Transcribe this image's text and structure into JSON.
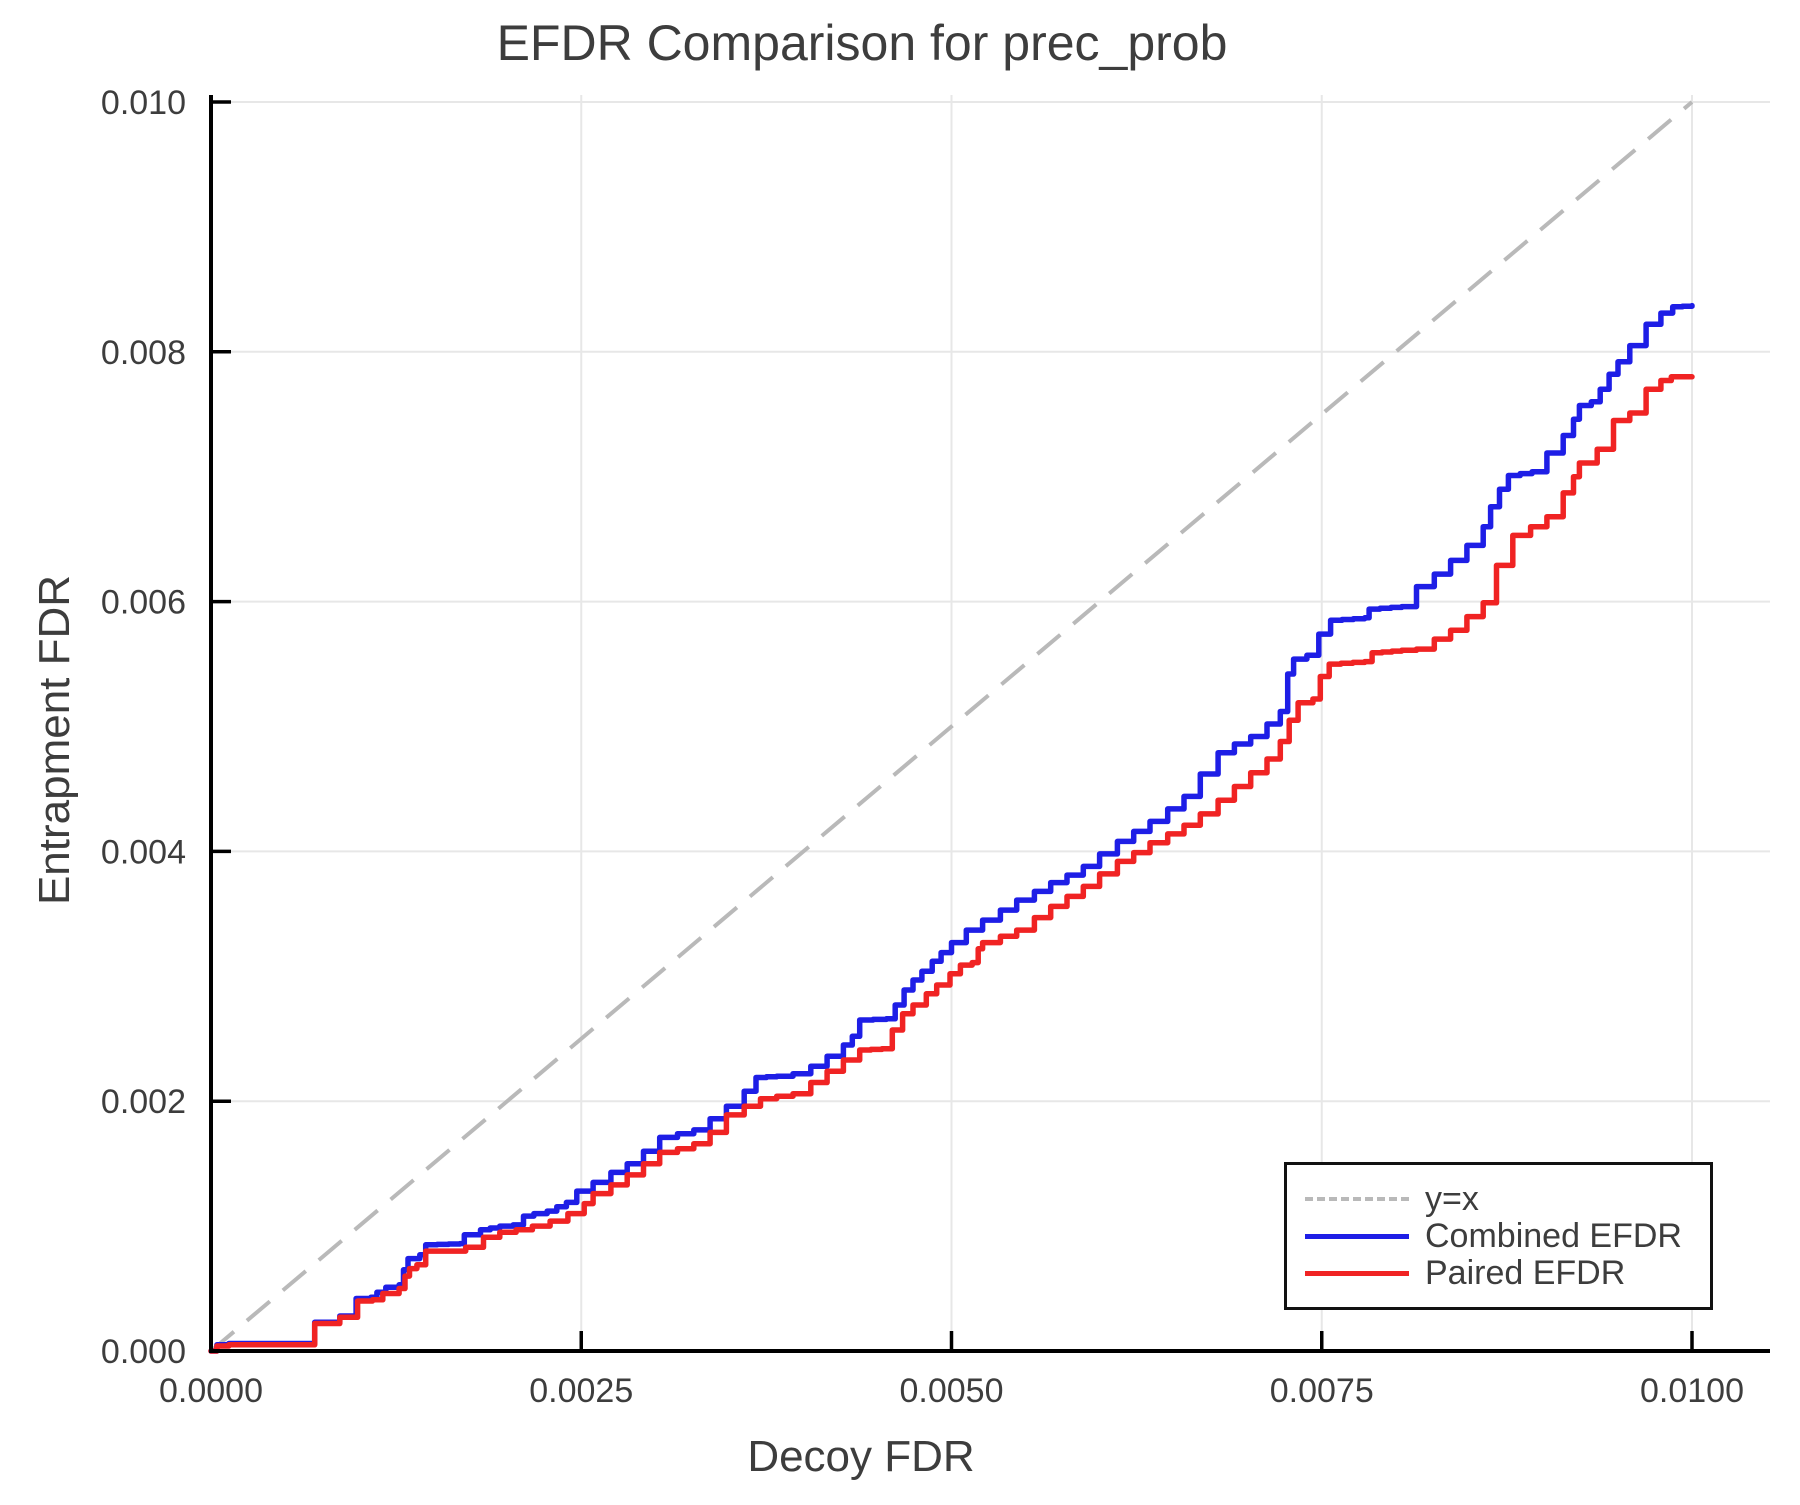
{
  "chart_data": {
    "type": "line",
    "title": "EFDR Comparison for prec_prob",
    "xlabel": "Decoy FDR",
    "ylabel": "Entrapment FDR",
    "xlim": [
      0,
      0.0105
    ],
    "ylim": [
      0,
      0.01005
    ],
    "grid": true,
    "background": "#ffffff",
    "grid_color": "#e7e7e7",
    "axis_color": "#000000",
    "text_color": "#3d3d3d",
    "x_ticks": {
      "values": [
        0,
        0.0025,
        0.005,
        0.0075,
        0.01
      ],
      "labels": [
        "0.0000",
        "0.0025",
        "0.0050",
        "0.0075",
        "0.0100"
      ]
    },
    "y_ticks": {
      "values": [
        0,
        0.002,
        0.004,
        0.006,
        0.008,
        0.01
      ],
      "labels": [
        "0.000",
        "0.002",
        "0.004",
        "0.006",
        "0.008",
        "0.010"
      ]
    },
    "legend": {
      "position": "lower right"
    },
    "series": [
      {
        "name": "y=x",
        "color": "#b9b9b9",
        "style": "dashed",
        "role": "reference",
        "points": [
          [
            0,
            0
          ],
          [
            0.01,
            0.01
          ]
        ]
      },
      {
        "name": "Combined EFDR",
        "color": "#1e1ee6",
        "style": "solid",
        "role": "data",
        "points": [
          [
            0,
            0
          ],
          [
            4e-05,
            5e-05
          ],
          [
            0.00012,
            6e-05
          ],
          [
            0.00068,
            6e-05
          ],
          [
            0.0007,
            0.00023
          ],
          [
            0.00085,
            0.00023
          ],
          [
            0.00087,
            0.00028
          ],
          [
            0.00096,
            0.00028
          ],
          [
            0.00098,
            0.00042
          ],
          [
            0.00108,
            0.00043
          ],
          [
            0.00112,
            0.00047
          ],
          [
            0.00118,
            0.00051
          ],
          [
            0.00127,
            0.00053
          ],
          [
            0.0013,
            0.00065
          ],
          [
            0.00133,
            0.00074
          ],
          [
            0.00141,
            0.00077
          ],
          [
            0.00145,
            0.00085
          ],
          [
            0.00168,
            0.00086
          ],
          [
            0.00171,
            0.00093
          ],
          [
            0.00182,
            0.00097
          ],
          [
            0.00195,
            0.001
          ],
          [
            0.00204,
            0.00101
          ],
          [
            0.00211,
            0.00108
          ],
          [
            0.00218,
            0.0011
          ],
          [
            0.00227,
            0.00112
          ],
          [
            0.0024,
            0.00119
          ],
          [
            0.00247,
            0.00128
          ],
          [
            0.00258,
            0.00135
          ],
          [
            0.0027,
            0.00143
          ],
          [
            0.00281,
            0.0015
          ],
          [
            0.00292,
            0.0016
          ],
          [
            0.00303,
            0.00171
          ],
          [
            0.00315,
            0.00174
          ],
          [
            0.00326,
            0.00177
          ],
          [
            0.00337,
            0.00186
          ],
          [
            0.00348,
            0.00196
          ],
          [
            0.0036,
            0.00208
          ],
          [
            0.00368,
            0.00219
          ],
          [
            0.00382,
            0.0022
          ],
          [
            0.00393,
            0.00222
          ],
          [
            0.00405,
            0.00228
          ],
          [
            0.00416,
            0.00236
          ],
          [
            0.00427,
            0.00245
          ],
          [
            0.00433,
            0.00252
          ],
          [
            0.00438,
            0.00265
          ],
          [
            0.00456,
            0.00266
          ],
          [
            0.00462,
            0.00277
          ],
          [
            0.00468,
            0.00289
          ],
          [
            0.00474,
            0.00297
          ],
          [
            0.0048,
            0.00304
          ],
          [
            0.00487,
            0.00312
          ],
          [
            0.00493,
            0.00319
          ],
          [
            0.005,
            0.00327
          ],
          [
            0.0051,
            0.00337
          ],
          [
            0.00521,
            0.00345
          ],
          [
            0.00533,
            0.00353
          ],
          [
            0.00544,
            0.00361
          ],
          [
            0.00556,
            0.00368
          ],
          [
            0.00567,
            0.00375
          ],
          [
            0.00578,
            0.00381
          ],
          [
            0.00589,
            0.00388
          ],
          [
            0.006,
            0.00398
          ],
          [
            0.00612,
            0.00408
          ],
          [
            0.00623,
            0.00416
          ],
          [
            0.00634,
            0.00424
          ],
          [
            0.00646,
            0.00434
          ],
          [
            0.00657,
            0.00444
          ],
          [
            0.00668,
            0.00462
          ],
          [
            0.0068,
            0.00479
          ],
          [
            0.00691,
            0.00486
          ],
          [
            0.00702,
            0.00492
          ],
          [
            0.00713,
            0.00502
          ],
          [
            0.00722,
            0.00512
          ],
          [
            0.00727,
            0.00542
          ],
          [
            0.00731,
            0.00554
          ],
          [
            0.0074,
            0.00557
          ],
          [
            0.00748,
            0.00574
          ],
          [
            0.00756,
            0.00585
          ],
          [
            0.00779,
            0.00587
          ],
          [
            0.00782,
            0.00594
          ],
          [
            0.00804,
            0.00596
          ],
          [
            0.00814,
            0.00612
          ],
          [
            0.00826,
            0.00622
          ],
          [
            0.00837,
            0.00633
          ],
          [
            0.00848,
            0.00645
          ],
          [
            0.00859,
            0.0066
          ],
          [
            0.00864,
            0.00676
          ],
          [
            0.0087,
            0.0069
          ],
          [
            0.00876,
            0.00701
          ],
          [
            0.00892,
            0.00704
          ],
          [
            0.00902,
            0.00719
          ],
          [
            0.00913,
            0.00733
          ],
          [
            0.0092,
            0.00746
          ],
          [
            0.00924,
            0.00757
          ],
          [
            0.00932,
            0.0076
          ],
          [
            0.00938,
            0.0077
          ],
          [
            0.00944,
            0.00782
          ],
          [
            0.0095,
            0.00792
          ],
          [
            0.00958,
            0.00805
          ],
          [
            0.00969,
            0.00822
          ],
          [
            0.00979,
            0.00831
          ],
          [
            0.00987,
            0.00836
          ],
          [
            0.01,
            0.00837
          ]
        ]
      },
      {
        "name": "Paired EFDR",
        "color": "#f02323",
        "style": "solid",
        "role": "data",
        "points": [
          [
            0,
            0
          ],
          [
            4e-05,
            4e-05
          ],
          [
            0.00012,
            5e-05
          ],
          [
            0.00068,
            5e-05
          ],
          [
            0.0007,
            0.00022
          ],
          [
            0.00085,
            0.00022
          ],
          [
            0.00087,
            0.00027
          ],
          [
            0.00097,
            0.00027
          ],
          [
            0.00099,
            0.0004
          ],
          [
            0.00109,
            0.00041
          ],
          [
            0.00116,
            0.00046
          ],
          [
            0.00127,
            0.0005
          ],
          [
            0.00131,
            0.0006
          ],
          [
            0.00134,
            0.00066
          ],
          [
            0.00139,
            0.00069
          ],
          [
            0.00145,
            0.0008
          ],
          [
            0.00165,
            0.0008
          ],
          [
            0.00172,
            0.00083
          ],
          [
            0.00184,
            0.00091
          ],
          [
            0.00195,
            0.00095
          ],
          [
            0.00206,
            0.00097
          ],
          [
            0.00217,
            0.001
          ],
          [
            0.00229,
            0.00104
          ],
          [
            0.00241,
            0.0011
          ],
          [
            0.00252,
            0.00118
          ],
          [
            0.00258,
            0.00126
          ],
          [
            0.0027,
            0.00133
          ],
          [
            0.00281,
            0.00141
          ],
          [
            0.00292,
            0.0015
          ],
          [
            0.00303,
            0.00159
          ],
          [
            0.00315,
            0.00162
          ],
          [
            0.00326,
            0.00166
          ],
          [
            0.00337,
            0.00175
          ],
          [
            0.00348,
            0.00189
          ],
          [
            0.0036,
            0.00196
          ],
          [
            0.00371,
            0.00202
          ],
          [
            0.00382,
            0.00204
          ],
          [
            0.00393,
            0.00206
          ],
          [
            0.00405,
            0.00215
          ],
          [
            0.00416,
            0.00224
          ],
          [
            0.00427,
            0.00233
          ],
          [
            0.00438,
            0.00241
          ],
          [
            0.00453,
            0.00242
          ],
          [
            0.0046,
            0.00257
          ],
          [
            0.00467,
            0.0027
          ],
          [
            0.00474,
            0.00277
          ],
          [
            0.00483,
            0.00286
          ],
          [
            0.0049,
            0.00293
          ],
          [
            0.00499,
            0.00302
          ],
          [
            0.00506,
            0.00309
          ],
          [
            0.00514,
            0.00311
          ],
          [
            0.00518,
            0.00322
          ],
          [
            0.00521,
            0.00327
          ],
          [
            0.00533,
            0.00332
          ],
          [
            0.00544,
            0.00337
          ],
          [
            0.00556,
            0.00347
          ],
          [
            0.00567,
            0.00356
          ],
          [
            0.00578,
            0.00364
          ],
          [
            0.00589,
            0.00372
          ],
          [
            0.006,
            0.00382
          ],
          [
            0.00612,
            0.00392
          ],
          [
            0.00623,
            0.00399
          ],
          [
            0.00634,
            0.00407
          ],
          [
            0.00646,
            0.00414
          ],
          [
            0.00657,
            0.00421
          ],
          [
            0.00668,
            0.0043
          ],
          [
            0.0068,
            0.00441
          ],
          [
            0.00691,
            0.00452
          ],
          [
            0.00702,
            0.00463
          ],
          [
            0.00713,
            0.00474
          ],
          [
            0.00722,
            0.00488
          ],
          [
            0.00728,
            0.00505
          ],
          [
            0.00734,
            0.00519
          ],
          [
            0.00744,
            0.00522
          ],
          [
            0.00749,
            0.0054
          ],
          [
            0.00755,
            0.0055
          ],
          [
            0.00779,
            0.00552
          ],
          [
            0.00784,
            0.00559
          ],
          [
            0.00804,
            0.00561
          ],
          [
            0.00814,
            0.00562
          ],
          [
            0.00826,
            0.0057
          ],
          [
            0.00837,
            0.00577
          ],
          [
            0.00848,
            0.00588
          ],
          [
            0.00859,
            0.00599
          ],
          [
            0.00868,
            0.00629
          ],
          [
            0.00879,
            0.00653
          ],
          [
            0.00891,
            0.0066
          ],
          [
            0.00902,
            0.00668
          ],
          [
            0.00913,
            0.00687
          ],
          [
            0.0092,
            0.007
          ],
          [
            0.00924,
            0.00711
          ],
          [
            0.00936,
            0.00722
          ],
          [
            0.00947,
            0.00745
          ],
          [
            0.00958,
            0.00751
          ],
          [
            0.00969,
            0.0077
          ],
          [
            0.00979,
            0.00777
          ],
          [
            0.00986,
            0.0078
          ],
          [
            0.01,
            0.0078
          ]
        ]
      }
    ]
  }
}
